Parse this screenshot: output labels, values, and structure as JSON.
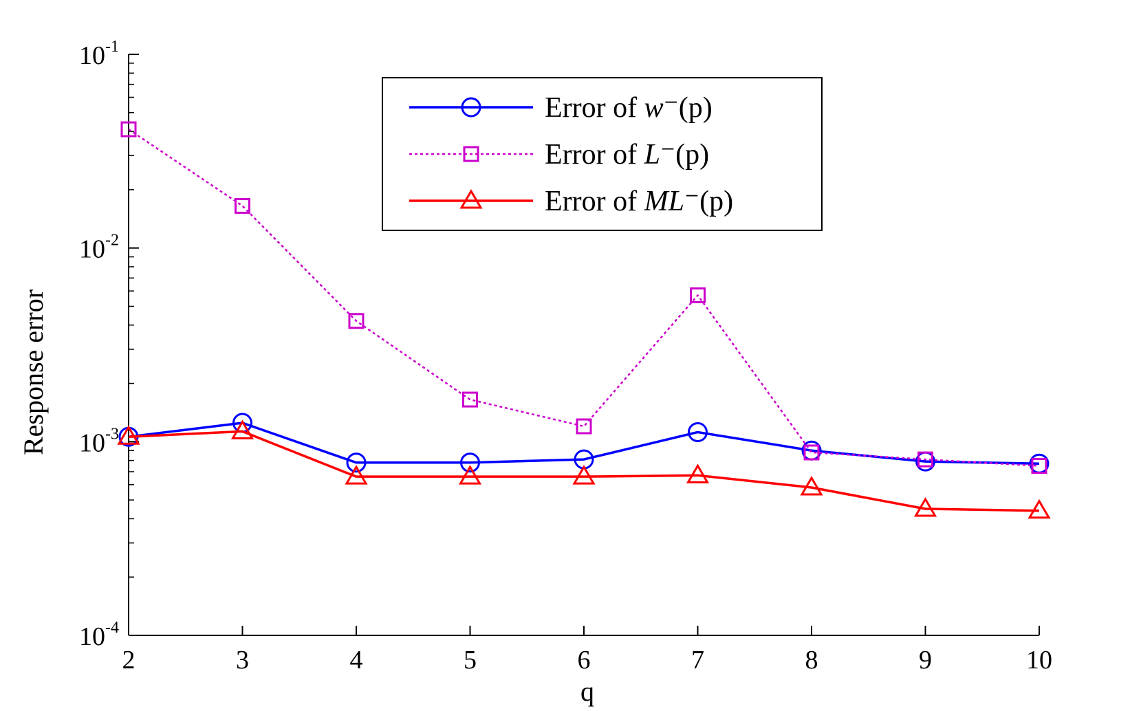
{
  "chart_data": {
    "type": "line",
    "title": "",
    "xlabel": "q",
    "ylabel": "Response error",
    "yscale": "log",
    "x": [
      2,
      3,
      4,
      5,
      6,
      7,
      8,
      9,
      10
    ],
    "xlim": [
      2,
      10
    ],
    "ylim": [
      0.0001,
      0.1
    ],
    "x_ticks": [
      "2",
      "3",
      "4",
      "5",
      "6",
      "7",
      "8",
      "9",
      "10"
    ],
    "y_ticks": [
      {
        "base": "10",
        "exp": "-4",
        "value": 0.0001
      },
      {
        "base": "10",
        "exp": "-3",
        "value": 0.001
      },
      {
        "base": "10",
        "exp": "-2",
        "value": 0.01
      },
      {
        "base": "10",
        "exp": "-1",
        "value": 0.1
      }
    ],
    "grid": false,
    "legend_position": "top-center",
    "series": [
      {
        "name": "Error of w⁻(p)",
        "legend_prefix": "Error of ",
        "legend_math": "w",
        "legend_suffix": "⁻(p)",
        "color": "#0000ff",
        "marker": "circle",
        "linestyle": "solid",
        "values": [
          0.00106,
          0.00125,
          0.00078,
          0.00078,
          0.00081,
          0.00112,
          0.0009,
          0.00079,
          0.00077
        ]
      },
      {
        "name": "Error of L⁻(p)",
        "legend_prefix": "Error of ",
        "legend_math": "L",
        "legend_suffix": "⁻(p)",
        "color": "#cc00cc",
        "marker": "square",
        "linestyle": "dotted",
        "values": [
          0.041,
          0.0165,
          0.0042,
          0.00165,
          0.0012,
          0.0057,
          0.00088,
          0.00081,
          0.00075
        ]
      },
      {
        "name": "Error of ML⁻(p)",
        "legend_prefix": "Error of ",
        "legend_math": "ML",
        "legend_suffix": "⁻(p)",
        "color": "#ff0000",
        "marker": "triangle",
        "linestyle": "solid",
        "values": [
          0.00106,
          0.00113,
          0.00066,
          0.00066,
          0.00066,
          0.00067,
          0.00058,
          0.00045,
          0.00044
        ]
      }
    ]
  }
}
